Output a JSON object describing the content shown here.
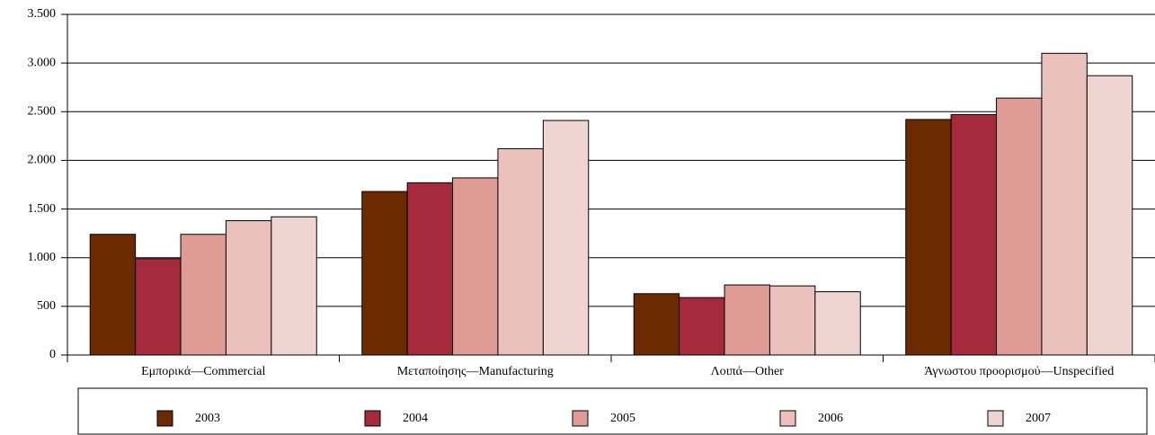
{
  "chart_data": {
    "type": "bar",
    "categories": [
      "Εμπορικά—Commercial",
      "Μεταποίησης—Manufacturing",
      "Λοιπά—Other",
      "Άγνωστου προορισμού—Unspecified"
    ],
    "series": [
      {
        "name": "2003",
        "color": "#6b2a00",
        "values": [
          1240,
          1680,
          630,
          2420
        ]
      },
      {
        "name": "2004",
        "color": "#a52a3c",
        "values": [
          990,
          1770,
          590,
          2470
        ]
      },
      {
        "name": "2005",
        "color": "#de9c94",
        "values": [
          1240,
          1820,
          720,
          2640
        ]
      },
      {
        "name": "2006",
        "color": "#ebc1bd",
        "values": [
          1380,
          2120,
          710,
          3100
        ]
      },
      {
        "name": "2007",
        "color": "#efd5d2",
        "values": [
          1420,
          2410,
          650,
          2870
        ]
      }
    ],
    "ylim": [
      0,
      3500
    ],
    "yticks": [
      0,
      500,
      {
        "value": 1000,
        "label": "1.000"
      },
      {
        "value": 1500,
        "label": "1.500"
      },
      {
        "value": 2000,
        "label": "2.000"
      },
      {
        "value": 2500,
        "label": "2.500"
      },
      {
        "value": 3000,
        "label": "3.000"
      },
      {
        "value": 3500,
        "label": "3.500"
      }
    ],
    "grid": true,
    "legend": "bottom"
  }
}
